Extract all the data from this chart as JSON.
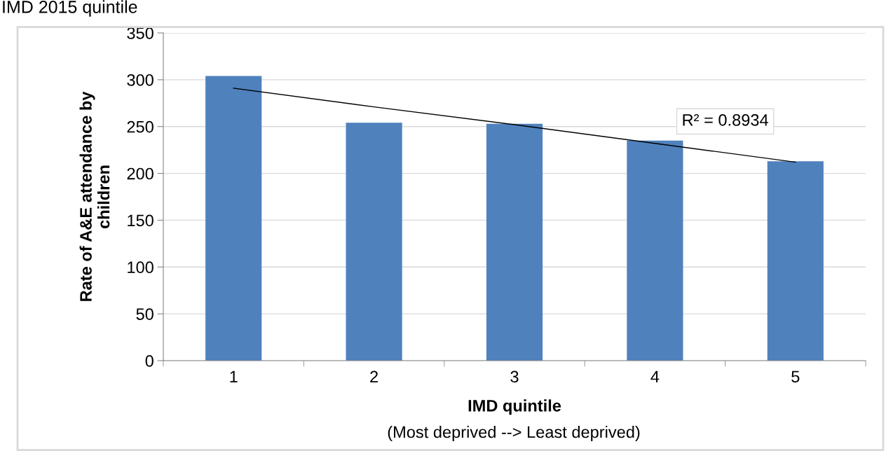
{
  "chart_data": {
    "type": "bar",
    "title": "IMD 2015 quintile",
    "xlabel": "IMD quintile",
    "ylabel": "Rate of A&E attendance by\nchildren",
    "categories": [
      "1",
      "2",
      "3",
      "4",
      "5"
    ],
    "series": [
      {
        "color": "#4f81bd",
        "values": [
          304,
          254,
          253,
          235,
          213
        ]
      },
      {
        "type": "line",
        "color": "#000000",
        "values": [
          291,
          271,
          252,
          232,
          212
        ]
      }
    ],
    "annotations": [
      "R² = 0.8934",
      "(Most deprived --> Least deprived)"
    ],
    "ylim": [
      0,
      350
    ],
    "yticks": [
      0,
      50,
      100,
      150,
      200,
      250,
      300,
      350
    ],
    "grid": "y",
    "legend": false
  }
}
